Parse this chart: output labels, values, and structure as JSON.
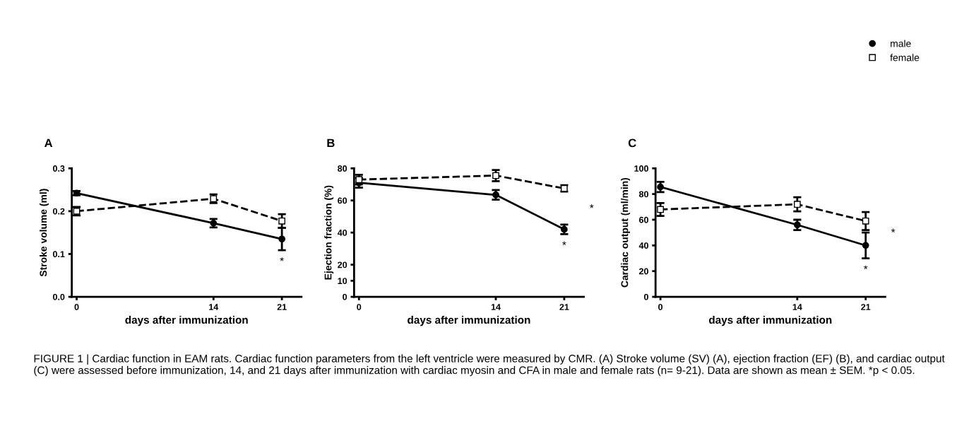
{
  "chart_data": [
    {
      "type": "line",
      "title": "A",
      "xlabel": "days after immunization",
      "ylabel": "Stroke volume (ml)",
      "x": [
        0,
        14,
        21
      ],
      "xlim": [
        -0.5,
        23
      ],
      "xticks": [
        0,
        14,
        21
      ],
      "ylim": [
        0,
        0.3
      ],
      "yticks": [
        {
          "value": 0,
          "label": "0.0"
        },
        0.1,
        0.2,
        0.3
      ],
      "grid": false,
      "legend": "top right",
      "series": [
        {
          "name": "male",
          "color": "#000000",
          "values": [
            0.242,
            0.172,
            0.135
          ],
          "errors": [
            0.005,
            0.01,
            0.026
          ],
          "marker": "circle",
          "line_style": "solid"
        },
        {
          "name": "female",
          "color": "#000000",
          "values": [
            0.2,
            0.229,
            0.177
          ],
          "errors": [
            0.01,
            0.01,
            0.016
          ],
          "marker": "square",
          "line_style": "dashed"
        }
      ],
      "annotations": [
        "*"
      ]
    },
    {
      "type": "line",
      "title": "B",
      "xlabel": "days after immunization",
      "ylabel": "Ejection fraction (%)",
      "x": [
        0,
        14,
        21
      ],
      "xlim": [
        -0.5,
        23
      ],
      "xticks": [
        0,
        14,
        21
      ],
      "ylim": [
        0,
        80
      ],
      "yticks": [
        0,
        10,
        20,
        40,
        60,
        80
      ],
      "grid": false,
      "series": [
        {
          "color": "#000000",
          "values": [
            71,
            63.5,
            42
          ],
          "errors": [
            3,
            3,
            3
          ],
          "marker": "circle",
          "line_style": "solid"
        },
        {
          "color": "#000000",
          "values": [
            73,
            75.5,
            67.5
          ],
          "errors": [
            3,
            3.5,
            2
          ],
          "marker": "square",
          "line_style": "dashed"
        }
      ],
      "annotations": [
        "*",
        "*"
      ]
    },
    {
      "type": "line",
      "title": "C",
      "xlabel": "days after immunization",
      "ylabel": "Cardiac output (ml/min)",
      "x": [
        0,
        14,
        21
      ],
      "xlim": [
        -0.5,
        23
      ],
      "xticks": [
        0,
        14,
        21
      ],
      "ylim": [
        0,
        100
      ],
      "yticks": [
        0,
        20,
        40,
        60,
        80,
        100
      ],
      "grid": false,
      "series": [
        {
          "color": "#000000",
          "values": [
            85.5,
            56,
            40
          ],
          "errors": [
            4,
            4,
            10
          ],
          "marker": "circle",
          "line_style": "solid"
        },
        {
          "color": "#000000",
          "values": [
            68,
            72,
            59
          ],
          "errors": [
            5,
            5.5,
            7
          ],
          "marker": "square",
          "line_style": "dashed"
        }
      ],
      "annotations": [
        "*",
        "*",
        "FIGURE 1 | Cardiac function in EAM rats. Cardiac function parameters from the left ventricle were measured by CMR. (A) Stroke volume (SV) (A), ejection fraction (EF) (B), and cardiac output (C) were assessed before immunization, 14, and 21 days after immunization with cardiac myosin and CFA in male and female rats (n= 9-21). Data are shown as mean ± SEM. *p < 0.05."
      ]
    }
  ]
}
